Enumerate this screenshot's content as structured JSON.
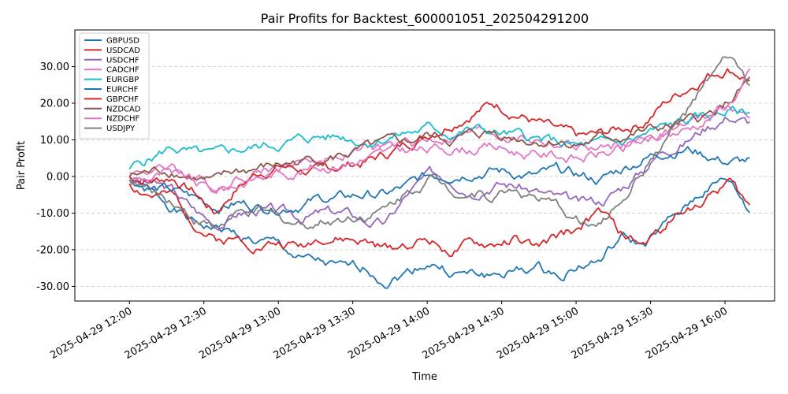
{
  "chart_data": {
    "type": "line",
    "title": "Pair Profits for Backtest_600001051_202504291200",
    "xlabel": "Time",
    "ylabel": "Pair Profit",
    "x_start": "2025-04-29 12:00",
    "x_end": "2025-04-29 16:10",
    "xlim": [
      "2025-04-29 11:38",
      "2025-04-29 16:20"
    ],
    "ylim": [
      -34,
      40
    ],
    "x_ticks": [
      "2025-04-29 12:00",
      "2025-04-29 12:30",
      "2025-04-29 13:00",
      "2025-04-29 13:30",
      "2025-04-29 14:00",
      "2025-04-29 14:30",
      "2025-04-29 15:00",
      "2025-04-29 15:30",
      "2025-04-29 16:00"
    ],
    "y_ticks": [
      "-30.00",
      "-20.00",
      "-10.00",
      "0.00",
      "10.00",
      "20.00",
      "30.00"
    ],
    "grid": "y-dashed",
    "legend_position": "top-left",
    "series": [
      {
        "name": "GBPUSD",
        "color": "#1f77b4",
        "anchors": [
          0.0,
          -5.0,
          -8.0,
          -13.0,
          -14.0,
          -16.0,
          -18.0,
          -19.0,
          -23.0,
          -24.0,
          -26.0,
          -25.0,
          -28.0,
          -26.0,
          -23.0,
          -26.0,
          -27.0,
          -27.0,
          -26.0,
          -25.0,
          -27.0,
          -24.0,
          -23.0,
          -17.0,
          -19.0,
          -14.0,
          -9.0,
          -3.0,
          -1.0,
          -10.0
        ]
      },
      {
        "name": "USDCAD",
        "color": "#d62728",
        "anchors": [
          -2.0,
          -5.0,
          -6.0,
          -12.0,
          -17.0,
          -17.0,
          -18.0,
          -18.0,
          -19.0,
          -16.0,
          -17.0,
          -18.0,
          -20.0,
          -18.0,
          -17.0,
          -20.0,
          -19.0,
          -19.0,
          -17.0,
          -20.0,
          -17.0,
          -14.0,
          -10.0,
          -16.0,
          -19.0,
          -14.0,
          -8.0,
          -6.0,
          -1.0,
          -9.0
        ]
      },
      {
        "name": "USDCHF",
        "color": "#9467bd",
        "anchors": [
          -1.0,
          -2.0,
          -4.0,
          -9.0,
          -13.0,
          -10.0,
          -9.0,
          -10.0,
          -11.0,
          -10.0,
          -10.0,
          -12.0,
          -13.0,
          -5.0,
          0.0,
          0.0,
          -3.0,
          -1.0,
          -2.0,
          -4.0,
          -6.0,
          -8.0,
          -7.0,
          -3.0,
          2.0,
          8.0,
          10.0,
          14.0,
          17.0,
          15.0
        ]
      },
      {
        "name": "CADCHF",
        "color": "#e377c2",
        "anchors": [
          1.0,
          2.0,
          2.0,
          0.0,
          -3.0,
          0.0,
          2.0,
          3.0,
          4.0,
          5.0,
          6.0,
          7.0,
          8.0,
          9.0,
          10.0,
          11.0,
          12.0,
          12.0,
          11.0,
          10.0,
          9.0,
          8.0,
          7.0,
          8.0,
          10.0,
          12.0,
          14.0,
          16.0,
          20.0,
          15.0
        ]
      },
      {
        "name": "EURGBP",
        "color": "#17becf",
        "anchors": [
          2.0,
          5.0,
          8.0,
          6.0,
          5.0,
          7.0,
          8.0,
          9.0,
          10.0,
          11.0,
          11.0,
          10.0,
          11.0,
          12.0,
          13.0,
          12.0,
          13.0,
          12.0,
          11.0,
          10.0,
          9.0,
          8.0,
          8.0,
          9.0,
          11.0,
          13.0,
          15.0,
          16.0,
          18.0,
          17.0
        ]
      },
      {
        "name": "EURCHF",
        "color": "#1f77b4",
        "anchors": [
          -1.0,
          -3.0,
          -4.0,
          -6.0,
          -8.0,
          -7.0,
          -8.0,
          -8.0,
          -7.0,
          -6.0,
          -6.0,
          -5.0,
          -5.0,
          -3.0,
          0.0,
          1.0,
          2.0,
          2.0,
          1.0,
          0.0,
          1.0,
          0.0,
          -1.0,
          2.0,
          5.0,
          7.0,
          8.0,
          6.0,
          4.0,
          4.0
        ]
      },
      {
        "name": "GBPCHF",
        "color": "#d62728",
        "anchors": [
          0.0,
          -1.0,
          0.0,
          -4.0,
          -10.0,
          -3.0,
          1.0,
          3.0,
          2.0,
          1.0,
          3.0,
          4.0,
          6.0,
          9.0,
          12.0,
          15.0,
          18.0,
          20.0,
          18.0,
          15.0,
          12.0,
          10.0,
          11.0,
          13.0,
          15.0,
          20.0,
          24.0,
          28.0,
          30.0,
          27.0
        ]
      },
      {
        "name": "NZDCAD",
        "color": "#8c564b",
        "anchors": [
          0.0,
          1.0,
          2.0,
          0.0,
          -2.0,
          1.0,
          2.0,
          3.0,
          4.0,
          5.0,
          6.0,
          7.0,
          8.0,
          9.0,
          11.0,
          10.0,
          11.0,
          12.0,
          11.0,
          10.0,
          10.0,
          9.0,
          10.0,
          11.0,
          12.0,
          13.0,
          14.0,
          16.0,
          20.0,
          26.0
        ]
      },
      {
        "name": "NZDCHF",
        "color": "#e377c2",
        "anchors": [
          -1.0,
          0.0,
          1.0,
          -2.0,
          -4.0,
          -2.0,
          0.0,
          1.0,
          2.0,
          3.0,
          4.0,
          5.0,
          6.0,
          7.0,
          7.0,
          8.0,
          8.0,
          8.0,
          7.0,
          6.0,
          6.0,
          5.0,
          6.0,
          7.0,
          9.0,
          11.0,
          13.0,
          16.0,
          20.0,
          28.0
        ]
      },
      {
        "name": "USDJPY",
        "color": "#7f7f7f",
        "anchors": [
          -1.0,
          -4.0,
          -6.0,
          -11.0,
          -14.0,
          -11.0,
          -10.0,
          -12.0,
          -13.0,
          -12.0,
          -11.0,
          -10.0,
          -9.0,
          -4.0,
          0.0,
          -3.0,
          -4.0,
          -5.0,
          -3.0,
          -6.0,
          -9.0,
          -12.0,
          -14.0,
          -6.0,
          2.0,
          10.0,
          17.0,
          25.0,
          32.0,
          25.0
        ]
      }
    ]
  }
}
